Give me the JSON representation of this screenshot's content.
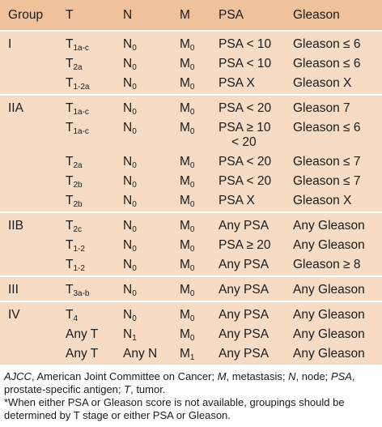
{
  "header": [
    "Group",
    "T",
    "N",
    "M",
    "PSA",
    "Gleason"
  ],
  "groups": [
    {
      "name": "I",
      "rows": [
        {
          "t": "T",
          "t_sub": "1a-c",
          "n": "N",
          "n_sub": "0",
          "m": "M",
          "m_sub": "0",
          "psa": "PSA < 10",
          "gleason": "Gleason ≤ 6"
        },
        {
          "t": "T",
          "t_sub": "2a",
          "n": "N",
          "n_sub": "0",
          "m": "M",
          "m_sub": "0",
          "psa": "PSA < 10",
          "gleason": "Gleason ≤ 6"
        },
        {
          "t": "T",
          "t_sub": "1-2a",
          "n": "N",
          "n_sub": "0",
          "m": "M",
          "m_sub": "0",
          "psa": "PSA X",
          "gleason": "Gleason X"
        }
      ]
    },
    {
      "name": "IIA",
      "rows": [
        {
          "t": "T",
          "t_sub": "1a-c",
          "n": "N",
          "n_sub": "0",
          "m": "M",
          "m_sub": "0",
          "psa": "PSA < 20",
          "gleason": "Gleason 7"
        },
        {
          "t": "T",
          "t_sub": "1a-c",
          "n": "N",
          "n_sub": "0",
          "m": "M",
          "m_sub": "0",
          "psa": "PSA ≥ 10",
          "psa_line2": "< 20",
          "gleason": "Gleason ≤ 6"
        },
        {
          "t": "T",
          "t_sub": "2a",
          "n": "N",
          "n_sub": "0",
          "m": "M",
          "m_sub": "0",
          "psa": "PSA < 20",
          "gleason": "Gleason ≤ 7"
        },
        {
          "t": "T",
          "t_sub": "2b",
          "n": "N",
          "n_sub": "0",
          "m": "M",
          "m_sub": "0",
          "psa": "PSA < 20",
          "gleason": "Gleason ≤ 7"
        },
        {
          "t": "T",
          "t_sub": "2b",
          "n": "N",
          "n_sub": "0",
          "m": "M",
          "m_sub": "0",
          "psa": "PSA X",
          "gleason": "Gleason X"
        }
      ]
    },
    {
      "name": "IIB",
      "rows": [
        {
          "t": "T",
          "t_sub": "2c",
          "n": "N",
          "n_sub": "0",
          "m": "M",
          "m_sub": "0",
          "psa": "Any PSA",
          "gleason": "Any Gleason"
        },
        {
          "t": "T",
          "t_sub": "1-2",
          "n": "N",
          "n_sub": "0",
          "m": "M",
          "m_sub": "0",
          "psa": "PSA ≥ 20",
          "gleason": "Any Gleason"
        },
        {
          "t": "T",
          "t_sub": "1-2",
          "n": "N",
          "n_sub": "0",
          "m": "M",
          "m_sub": "0",
          "psa": "Any PSA",
          "gleason": "Gleason ≥ 8"
        }
      ]
    },
    {
      "name": "III",
      "rows": [
        {
          "t": "T",
          "t_sub": "3a-b",
          "n": "N",
          "n_sub": "0",
          "m": "M",
          "m_sub": "0",
          "psa": "Any PSA",
          "gleason": "Any Gleason"
        }
      ]
    },
    {
      "name": "IV",
      "rows": [
        {
          "t": "T",
          "t_sub": "4",
          "n": "N",
          "n_sub": "0",
          "m": "M",
          "m_sub": "0",
          "psa": "Any PSA",
          "gleason": "Any Gleason"
        },
        {
          "t": "Any T",
          "t_sub": "",
          "n": "N",
          "n_sub": "1",
          "m": "M",
          "m_sub": "0",
          "psa": "Any PSA",
          "gleason": "Any Gleason"
        },
        {
          "t": "Any T",
          "t_sub": "",
          "n": "Any N",
          "n_sub": "",
          "m": "M",
          "m_sub": "1",
          "psa": "Any PSA",
          "gleason": "Any Gleason"
        }
      ]
    }
  ],
  "footnotes": {
    "abbrev": [
      {
        "term": "AJCC",
        "def": ", American Joint Committee on Cancer; "
      },
      {
        "term": "M",
        "def": ", metastasis; "
      },
      {
        "term": "N",
        "def": ", node; "
      },
      {
        "term": "PSA",
        "def": ", prostate-specific antigen; "
      },
      {
        "term": "T",
        "def": ", tumor."
      }
    ],
    "note": "*When either PSA or Gleason score is not available, groupings should be determined by T stage or either PSA or Gleason."
  },
  "colors": {
    "header_bg": "#f0c29c",
    "body_bg": "#f6dcc4",
    "separator": "#ffffff"
  }
}
